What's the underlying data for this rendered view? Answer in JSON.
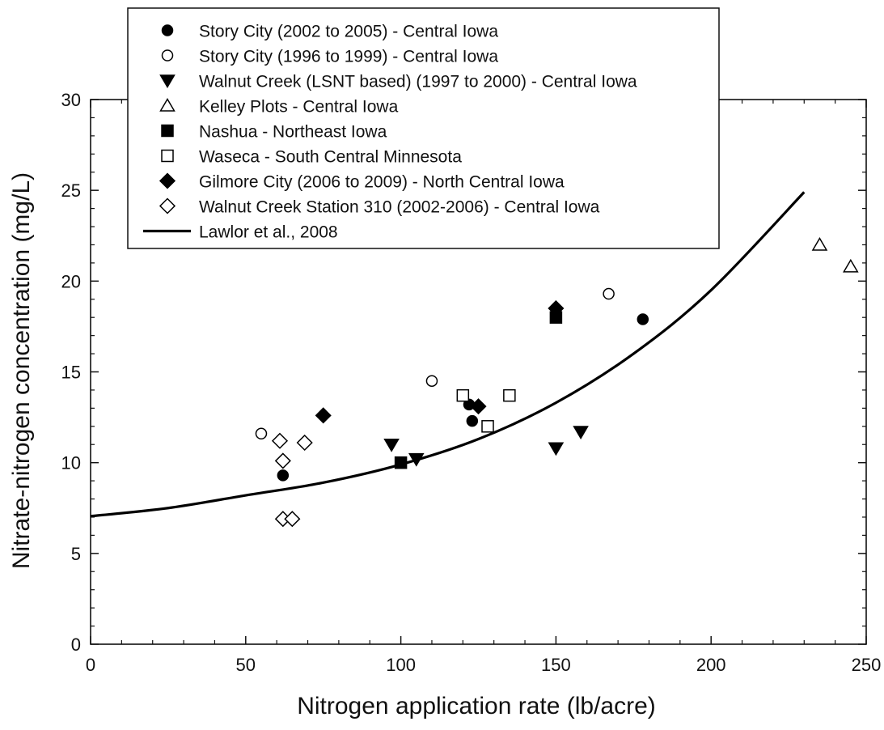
{
  "chart_data": {
    "type": "scatter",
    "title": "",
    "xlabel": "Nitrogen application rate (lb/acre)",
    "ylabel": "Nitrate-nitrogen concentration (mg/L)",
    "xlim": [
      0,
      250
    ],
    "ylim": [
      0,
      30
    ],
    "x_ticks": [
      0,
      50,
      100,
      150,
      200,
      250
    ],
    "y_ticks": [
      0,
      5,
      10,
      15,
      20,
      25,
      30
    ],
    "grid": false,
    "legend_position": "top-center",
    "series": [
      {
        "name": "Story City (2002 to 2005) - Central Iowa",
        "marker": "circle",
        "filled": true,
        "x": [
          62,
          122,
          123,
          178
        ],
        "y": [
          9.3,
          13.2,
          12.3,
          17.9
        ]
      },
      {
        "name": "Story City (1996 to 1999) - Central Iowa",
        "marker": "circle",
        "filled": false,
        "x": [
          55,
          110,
          167
        ],
        "y": [
          11.6,
          14.5,
          19.3
        ]
      },
      {
        "name": "Walnut Creek (LSNT based) (1997 to 2000) - Central Iowa",
        "marker": "triangle-down",
        "filled": true,
        "x": [
          97,
          105,
          150,
          158
        ],
        "y": [
          11.0,
          10.2,
          10.8,
          11.7
        ]
      },
      {
        "name": "Kelley Plots - Central Iowa",
        "marker": "triangle-up",
        "filled": false,
        "x": [
          235,
          245
        ],
        "y": [
          22.0,
          20.8
        ]
      },
      {
        "name": "Nashua - Northeast Iowa",
        "marker": "square",
        "filled": true,
        "x": [
          100,
          150
        ],
        "y": [
          10.0,
          18.0
        ]
      },
      {
        "name": "Waseca - South Central Minnesota",
        "marker": "square",
        "filled": false,
        "x": [
          120,
          128,
          135
        ],
        "y": [
          13.7,
          12.0,
          13.7
        ]
      },
      {
        "name": "Gilmore City (2006 to 2009) - North Central Iowa",
        "marker": "diamond",
        "filled": true,
        "x": [
          75,
          125,
          150
        ],
        "y": [
          12.6,
          13.1,
          18.5
        ]
      },
      {
        "name": "Walnut Creek Station 310 (2002-2006) - Central Iowa",
        "marker": "diamond",
        "filled": false,
        "x": [
          61,
          62,
          69,
          62,
          65
        ],
        "y": [
          11.2,
          10.1,
          11.1,
          6.9,
          6.9
        ]
      },
      {
        "name": "Lawlor et al., 2008",
        "marker": "line",
        "filled": true,
        "x": [
          0,
          25,
          50,
          75,
          100,
          125,
          150,
          175,
          200,
          230
        ],
        "y": [
          7.05,
          7.5,
          8.2,
          8.9,
          9.9,
          11.3,
          13.3,
          16.0,
          19.5,
          24.9
        ]
      }
    ]
  }
}
